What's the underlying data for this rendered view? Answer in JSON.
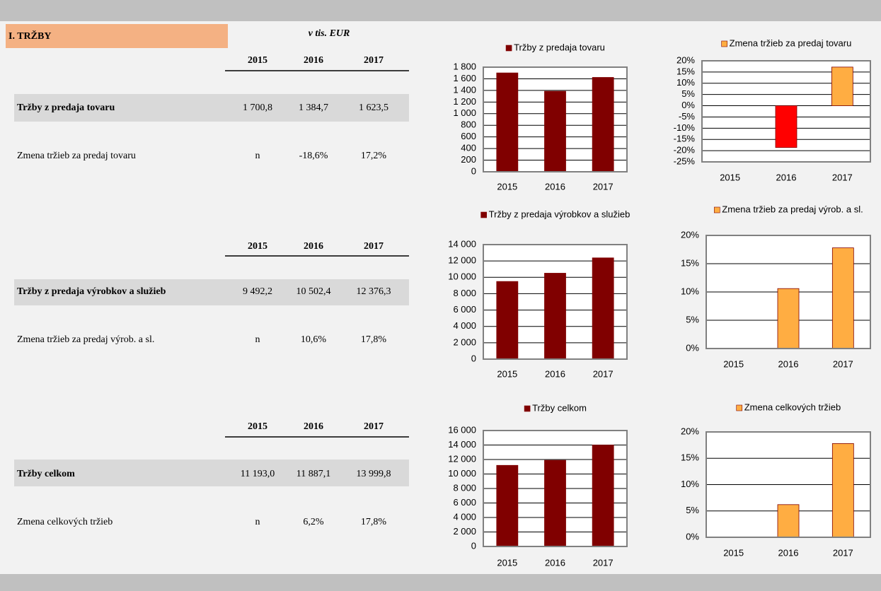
{
  "header": {
    "title": "I. TRŽBY",
    "unit": "v tis. EUR"
  },
  "sections": [
    {
      "years": [
        "2015",
        "2016",
        "2017"
      ],
      "rows": [
        [
          "Tržby z predaja tovaru",
          "1 700,8",
          "1 384,7",
          "1 623,5"
        ],
        [
          "Zmena tržieb za predaj tovaru",
          "n",
          "-18,6%",
          "17,2%"
        ]
      ]
    },
    {
      "years": [
        "2015",
        "2016",
        "2017"
      ],
      "rows": [
        [
          "Tržby z predaja výrobkov a služieb",
          "9 492,2",
          "10 502,4",
          "12 376,3"
        ],
        [
          "Zmena tržieb za predaj výrob. a sl.",
          "n",
          "10,6%",
          "17,8%"
        ]
      ]
    },
    {
      "years": [
        "2015",
        "2016",
        "2017"
      ],
      "rows": [
        [
          "Tržby celkom",
          "11 193,0",
          "11 887,1",
          "13 999,8"
        ],
        [
          "Zmena celkových tržieb",
          "n",
          "6,2%",
          "17,8%"
        ]
      ]
    }
  ],
  "chart_data": [
    {
      "type": "bar",
      "categories": [
        "2015",
        "2016",
        "2017"
      ],
      "series": [
        {
          "name": "Tržby z predaja tovaru",
          "color": "#800000",
          "values": [
            1700.8,
            1384.7,
            1623.5
          ]
        }
      ],
      "ylim": [
        0,
        1800
      ],
      "yticks": [
        0,
        200,
        400,
        600,
        800,
        {
          "value": 1000,
          "label": "1 000"
        },
        {
          "value": 1200,
          "label": "1 200"
        },
        {
          "value": 1400,
          "label": "1 400"
        },
        {
          "value": 1600,
          "label": "1 600"
        },
        {
          "value": 1800,
          "label": "1 800"
        }
      ],
      "grid": true
    },
    {
      "type": "bar",
      "categories": [
        "2015",
        "2016",
        "2017"
      ],
      "series": [
        {
          "name": "Zmena tržieb za predaj tovaru",
          "color": "#ffad42",
          "colors": [
            "#ffad42",
            "#ff0000",
            "#ffad42"
          ],
          "values": [
            null,
            -18.6,
            17.2
          ]
        }
      ],
      "ylim": [
        -25,
        20
      ],
      "yticks": [
        {
          "value": -25,
          "label": "-25%"
        },
        {
          "value": -20,
          "label": "-20%"
        },
        {
          "value": -15,
          "label": "-15%"
        },
        {
          "value": -10,
          "label": "-10%"
        },
        {
          "value": -5,
          "label": "-5%"
        },
        {
          "value": 0,
          "label": "0%"
        },
        {
          "value": 5,
          "label": "5%"
        },
        {
          "value": 10,
          "label": "10%"
        },
        {
          "value": 15,
          "label": "15%"
        },
        {
          "value": 20,
          "label": "20%"
        }
      ],
      "grid": true
    },
    {
      "type": "bar",
      "categories": [
        "2015",
        "2016",
        "2017"
      ],
      "series": [
        {
          "name": "Tržby z predaja výrobkov a služieb",
          "color": "#800000",
          "values": [
            9492.2,
            10502.4,
            12376.3
          ]
        }
      ],
      "ylim": [
        0,
        14000
      ],
      "yticks": [
        0,
        {
          "value": 2000,
          "label": "2 000"
        },
        {
          "value": 4000,
          "label": "4 000"
        },
        {
          "value": 6000,
          "label": "6 000"
        },
        {
          "value": 8000,
          "label": "8 000"
        },
        {
          "value": 10000,
          "label": "10 000"
        },
        {
          "value": 12000,
          "label": "12 000"
        },
        {
          "value": 14000,
          "label": "14 000"
        }
      ],
      "grid": true
    },
    {
      "type": "bar",
      "categories": [
        "2015",
        "2016",
        "2017"
      ],
      "series": [
        {
          "name": "Zmena tržieb za predaj výrob. a sl.",
          "color": "#ffad42",
          "values": [
            null,
            10.6,
            17.8
          ]
        }
      ],
      "ylim": [
        0,
        20
      ],
      "yticks": [
        {
          "value": 0,
          "label": "0%"
        },
        {
          "value": 5,
          "label": "5%"
        },
        {
          "value": 10,
          "label": "10%"
        },
        {
          "value": 15,
          "label": "15%"
        },
        {
          "value": 20,
          "label": "20%"
        }
      ],
      "grid": true
    },
    {
      "type": "bar",
      "categories": [
        "2015",
        "2016",
        "2017"
      ],
      "series": [
        {
          "name": "Tržby celkom",
          "color": "#800000",
          "values": [
            11193.0,
            11887.1,
            13999.8
          ]
        }
      ],
      "ylim": [
        0,
        16000
      ],
      "yticks": [
        0,
        {
          "value": 2000,
          "label": "2 000"
        },
        {
          "value": 4000,
          "label": "4 000"
        },
        {
          "value": 6000,
          "label": "6 000"
        },
        {
          "value": 8000,
          "label": "8 000"
        },
        {
          "value": 10000,
          "label": "10 000"
        },
        {
          "value": 12000,
          "label": "12 000"
        },
        {
          "value": 14000,
          "label": "14 000"
        },
        {
          "value": 16000,
          "label": "16 000"
        }
      ],
      "grid": true
    },
    {
      "type": "bar",
      "categories": [
        "2015",
        "2016",
        "2017"
      ],
      "series": [
        {
          "name": "Zmena celkových tržieb",
          "color": "#ffad42",
          "values": [
            null,
            6.2,
            17.8
          ]
        }
      ],
      "ylim": [
        0,
        20
      ],
      "yticks": [
        {
          "value": 0,
          "label": "0%"
        },
        {
          "value": 5,
          "label": "5%"
        },
        {
          "value": 10,
          "label": "10%"
        },
        {
          "value": 15,
          "label": "15%"
        },
        {
          "value": 20,
          "label": "20%"
        }
      ],
      "grid": true
    }
  ]
}
